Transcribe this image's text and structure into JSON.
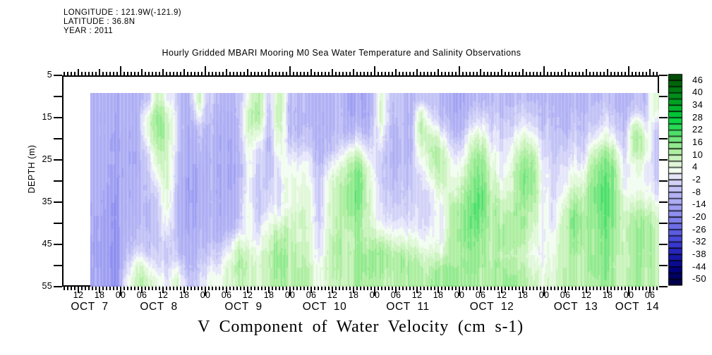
{
  "header": {
    "longitude": "LONGITUDE : 121.9W(-121.9)",
    "latitude": "LATITUDE : 36.8N",
    "year": "YEAR : 2011"
  },
  "title": "Hourly Gridded MBARI Mooring M0 Sea Water Temperature and Salinity Observations",
  "caption": "V Component of Water Velocity (cm s-1)",
  "y_axis": {
    "label": "DEPTH (m)",
    "major_ticks": [
      5,
      15,
      25,
      35,
      45,
      55
    ],
    "minor_ticks": [
      10,
      20,
      30,
      40,
      50
    ],
    "min": 5,
    "max": 55
  },
  "x_axis": {
    "hour_labels": [
      "12",
      "18",
      "00",
      "06",
      "12",
      "18",
      "00",
      "06",
      "12",
      "18",
      "00",
      "06",
      "12",
      "18",
      "00",
      "06",
      "12",
      "18",
      "00",
      "06",
      "12",
      "18",
      "00",
      "06",
      "12",
      "18",
      "00",
      "06"
    ],
    "date_labels": [
      "OCT 7",
      "OCT 8",
      "OCT 9",
      "OCT 10",
      "OCT 11",
      "OCT 12",
      "OCT 13",
      "OCT 14"
    ]
  },
  "colorbar": {
    "labels": [
      46,
      40,
      34,
      28,
      22,
      16,
      10,
      4,
      -2,
      -8,
      -14,
      -20,
      -26,
      -32,
      -38,
      -44,
      -50
    ],
    "vmin": -53,
    "vmax": 49,
    "segment_step": 3,
    "colors_bottom_to_top": [
      "#00004c",
      "#000063",
      "#00007a",
      "#0a0a91",
      "#1616a8",
      "#2626bd",
      "#3838cf",
      "#4a4ad9",
      "#5c5ce0",
      "#6e6ee7",
      "#7f7fec",
      "#8f8ff0",
      "#9e9ef2",
      "#adadf4",
      "#b2b2f4",
      "#c2c2f6",
      "#d2d2f8",
      "#e6e6fb",
      "#f2fcf0",
      "#e0f8d8",
      "#c9f3bc",
      "#aeeea2",
      "#92ea8e",
      "#72e57d",
      "#4de06a",
      "#28da55",
      "#0cd443",
      "#00c636",
      "#00b42b",
      "#00a122",
      "#008e1a",
      "#007a12",
      "#00650b",
      "#004d05"
    ]
  },
  "chart_data": {
    "type": "heatmap",
    "title": "Hourly Gridded MBARI Mooring M0 Sea Water Temperature and Salinity Observations",
    "xlabel_bottom": "V Component of Water Velocity (cm s-1)",
    "ylabel": "DEPTH (m)",
    "units": "cm s-1",
    "time_start": "OCT 7 2011 ~12:00",
    "time_end": "OCT 14 2011 ~09:00",
    "time_step_hours": 3,
    "depth_range_m": [
      11,
      55
    ],
    "depth_rows": 15,
    "legend_position": "right-colorbar",
    "grid": false,
    "columns": [
      [
        -12,
        -12,
        -12,
        -12,
        -12,
        -12,
        -12,
        -12,
        -13,
        -13,
        -13,
        -14,
        -14,
        -14,
        -14
      ],
      [
        -13,
        -13,
        -13,
        -14,
        -14,
        -14,
        -14,
        -15,
        -15,
        -16,
        -16,
        -16,
        -17,
        -17,
        -17
      ],
      [
        -14,
        -14,
        -14,
        -15,
        -15,
        -15,
        -16,
        -16,
        -17,
        -17,
        -18,
        -18,
        -18,
        -19,
        -19
      ],
      [
        -12,
        -12,
        -12,
        -13,
        -13,
        -13,
        -13,
        -13,
        -12,
        -12,
        -11,
        -10,
        -8,
        -4,
        2
      ],
      [
        -11,
        -11,
        -11,
        -12,
        -12,
        -12,
        -11,
        -11,
        -10,
        -9,
        -8,
        -6,
        0,
        8,
        10
      ],
      [
        -6,
        2,
        6,
        4,
        -2,
        -5,
        -6,
        -7,
        -8,
        -8,
        -8,
        -7,
        -4,
        4,
        8
      ],
      [
        8,
        14,
        14,
        12,
        8,
        6,
        2,
        -3,
        -5,
        -6,
        -6,
        -6,
        -5,
        -2,
        4
      ],
      [
        2,
        8,
        10,
        10,
        9,
        8,
        8,
        7,
        6,
        4,
        2,
        -3,
        -5,
        -4,
        -2
      ],
      [
        -6,
        -4,
        -3,
        -4,
        -5,
        -7,
        -8,
        -9,
        -10,
        -10,
        -10,
        -9,
        -6,
        2,
        8
      ],
      [
        -12,
        -13,
        -13,
        -14,
        -14,
        -14,
        -15,
        -15,
        -15,
        -15,
        -14,
        -13,
        -12,
        -10,
        -6
      ],
      [
        10,
        4,
        -4,
        -8,
        -10,
        -11,
        -12,
        -12,
        -12,
        -12,
        -11,
        -10,
        -8,
        -6,
        -3
      ],
      [
        -4,
        -6,
        -8,
        -9,
        -10,
        -10,
        -10,
        -10,
        -10,
        -10,
        -9,
        -7,
        -4,
        0,
        2
      ],
      [
        -8,
        -10,
        -11,
        -12,
        -12,
        -13,
        -13,
        -13,
        -12,
        -12,
        -11,
        -9,
        -5,
        0,
        4
      ],
      [
        -10,
        -12,
        -13,
        -13,
        -14,
        -14,
        -14,
        -13,
        -13,
        -12,
        -10,
        -4,
        2,
        6,
        6
      ],
      [
        -8,
        -8,
        -9,
        -10,
        -11,
        -11,
        -11,
        -10,
        -9,
        -8,
        -4,
        6,
        10,
        12,
        10
      ],
      [
        4,
        8,
        8,
        6,
        4,
        2,
        2,
        2,
        4,
        4,
        2,
        4,
        8,
        8,
        8
      ],
      [
        12,
        14,
        10,
        4,
        -2,
        -4,
        -5,
        -6,
        -6,
        -5,
        -3,
        0,
        4,
        6,
        6
      ],
      [
        -4,
        -6,
        -7,
        -8,
        -8,
        -7,
        -5,
        -3,
        -2,
        2,
        6,
        8,
        10,
        10,
        10
      ],
      [
        10,
        12,
        10,
        8,
        4,
        0,
        -2,
        -3,
        -2,
        2,
        8,
        12,
        14,
        14,
        12
      ],
      [
        -6,
        -8,
        -8,
        -6,
        -2,
        2,
        4,
        4,
        4,
        6,
        8,
        10,
        10,
        10,
        10
      ],
      [
        -8,
        -9,
        -9,
        -6,
        -2,
        2,
        4,
        6,
        6,
        8,
        8,
        8,
        10,
        12,
        12
      ],
      [
        -10,
        -10,
        -9,
        -8,
        -4,
        0,
        2,
        4,
        4,
        4,
        6,
        6,
        6,
        8,
        8
      ],
      [
        -12,
        -12,
        -12,
        -12,
        -11,
        -10,
        -9,
        -8,
        -7,
        -6,
        -5,
        -4,
        -2,
        2,
        2
      ],
      [
        -9,
        -9,
        -9,
        -8,
        -6,
        0,
        6,
        8,
        8,
        8,
        8,
        10,
        10,
        10,
        8
      ],
      [
        -8,
        -8,
        -8,
        -6,
        -2,
        4,
        8,
        10,
        10,
        10,
        10,
        12,
        12,
        12,
        10
      ],
      [
        -14,
        -13,
        -10,
        -4,
        6,
        12,
        14,
        16,
        16,
        14,
        12,
        10,
        10,
        10,
        10
      ],
      [
        -15,
        -14,
        -11,
        -4,
        4,
        12,
        16,
        16,
        16,
        14,
        12,
        12,
        14,
        14,
        12
      ],
      [
        -13,
        -12,
        -10,
        -6,
        -2,
        2,
        4,
        6,
        6,
        6,
        8,
        10,
        14,
        14,
        12
      ],
      [
        6,
        8,
        6,
        2,
        -2,
        -4,
        -4,
        -3,
        -2,
        0,
        4,
        10,
        14,
        14,
        12
      ],
      [
        -4,
        -6,
        -7,
        -8,
        -8,
        -8,
        -7,
        -6,
        -4,
        -2,
        2,
        8,
        12,
        12,
        10
      ],
      [
        -8,
        -9,
        -10,
        -10,
        -10,
        -9,
        -8,
        -7,
        -6,
        -4,
        0,
        4,
        10,
        12,
        10
      ],
      [
        -10,
        -10,
        -10,
        -10,
        -9,
        -8,
        -7,
        -6,
        -5,
        -3,
        0,
        6,
        10,
        12,
        12
      ],
      [
        -6,
        8,
        12,
        10,
        6,
        2,
        -2,
        -3,
        -4,
        -3,
        -2,
        2,
        8,
        10,
        10
      ],
      [
        -8,
        -4,
        2,
        8,
        10,
        8,
        4,
        0,
        -2,
        -2,
        0,
        2,
        6,
        10,
        12
      ],
      [
        -10,
        -8,
        -4,
        4,
        10,
        12,
        10,
        6,
        2,
        0,
        0,
        2,
        6,
        12,
        12
      ],
      [
        -14,
        -12,
        -10,
        -6,
        -2,
        2,
        4,
        6,
        10,
        12,
        12,
        12,
        12,
        14,
        14
      ],
      [
        -14,
        -13,
        -10,
        -6,
        -2,
        2,
        6,
        10,
        12,
        14,
        14,
        14,
        12,
        14,
        14
      ],
      [
        -10,
        -6,
        -2,
        6,
        10,
        12,
        14,
        16,
        18,
        18,
        18,
        16,
        14,
        14,
        12
      ],
      [
        -8,
        -4,
        2,
        8,
        12,
        16,
        18,
        20,
        20,
        18,
        16,
        14,
        12,
        12,
        12
      ],
      [
        -8,
        -6,
        -4,
        -2,
        2,
        4,
        6,
        8,
        10,
        10,
        10,
        10,
        10,
        12,
        12
      ],
      [
        -9,
        -8,
        -6,
        -4,
        -2,
        0,
        2,
        4,
        8,
        10,
        12,
        12,
        10,
        12,
        12
      ],
      [
        -8,
        -6,
        -4,
        0,
        4,
        6,
        8,
        8,
        10,
        12,
        12,
        12,
        10,
        12,
        14
      ],
      [
        -7,
        -4,
        0,
        6,
        10,
        14,
        16,
        16,
        14,
        12,
        12,
        10,
        8,
        10,
        12
      ],
      [
        -8,
        -5,
        -2,
        4,
        10,
        14,
        16,
        14,
        12,
        10,
        8,
        6,
        4,
        6,
        8
      ],
      [
        -9,
        -8,
        -6,
        -4,
        -2,
        0,
        2,
        2,
        2,
        2,
        2,
        2,
        2,
        4,
        6
      ],
      [
        -10,
        -9,
        -8,
        -7,
        -6,
        -5,
        -4,
        -3,
        -2,
        -2,
        0,
        2,
        4,
        4,
        6
      ],
      [
        -10,
        -9,
        -8,
        -6,
        -4,
        -2,
        0,
        2,
        6,
        8,
        10,
        10,
        10,
        10,
        10
      ],
      [
        -9,
        -8,
        -7,
        -5,
        -2,
        0,
        4,
        8,
        12,
        16,
        16,
        14,
        12,
        12,
        12
      ],
      [
        -10,
        -9,
        -8,
        -6,
        -4,
        0,
        4,
        8,
        10,
        12,
        12,
        12,
        10,
        10,
        10
      ],
      [
        -8,
        -6,
        -4,
        0,
        8,
        12,
        14,
        16,
        16,
        16,
        14,
        14,
        14,
        14,
        12
      ],
      [
        -8,
        -5,
        -2,
        4,
        12,
        16,
        18,
        20,
        20,
        18,
        18,
        16,
        16,
        16,
        14
      ],
      [
        -8,
        -6,
        -3,
        2,
        10,
        14,
        16,
        16,
        16,
        16,
        14,
        14,
        14,
        12,
        12
      ],
      [
        -10,
        -9,
        -8,
        -6,
        -4,
        -2,
        0,
        2,
        6,
        8,
        8,
        8,
        8,
        8,
        8
      ],
      [
        -8,
        -4,
        8,
        12,
        10,
        4,
        2,
        2,
        6,
        10,
        12,
        12,
        12,
        12,
        12
      ],
      [
        -8,
        -6,
        2,
        8,
        8,
        4,
        2,
        4,
        8,
        12,
        14,
        14,
        12,
        12,
        12
      ],
      [
        8,
        6,
        -2,
        -6,
        -6,
        -5,
        -4,
        -2,
        4,
        8,
        10,
        10,
        10,
        10,
        10
      ]
    ]
  }
}
